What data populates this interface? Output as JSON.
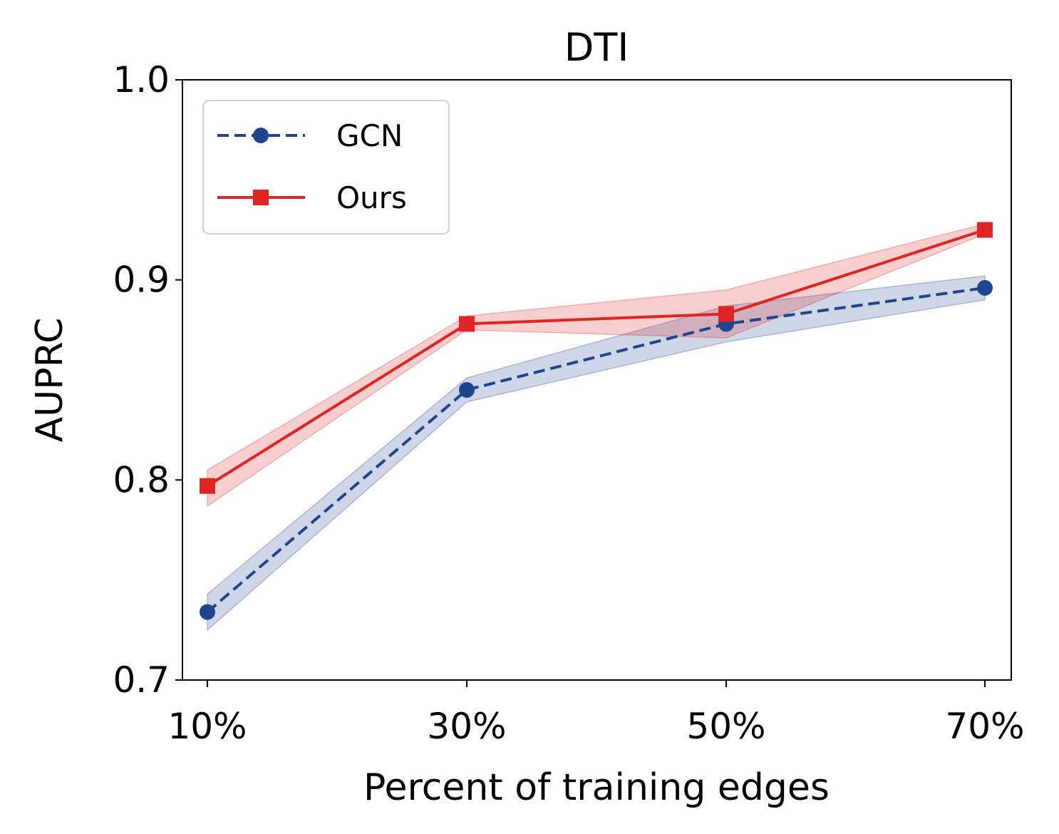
{
  "chart_data": {
    "type": "line",
    "title": "DTI",
    "xlabel": "Percent of training edges",
    "ylabel": "AUPRC",
    "categories": [
      "10%",
      "30%",
      "50%",
      "70%"
    ],
    "ylim": [
      0.7,
      1.0
    ],
    "yticks": [
      "0.7",
      "0.8",
      "0.9",
      "1.0"
    ],
    "grid": false,
    "legend_position": "top-left",
    "series": [
      {
        "name": "GCN",
        "values": [
          0.734,
          0.845,
          0.878,
          0.896
        ],
        "lower": [
          0.725,
          0.839,
          0.869,
          0.89
        ],
        "upper": [
          0.743,
          0.851,
          0.887,
          0.902
        ],
        "color": "#1f4591",
        "line_style": "dashed",
        "marker": "circle"
      },
      {
        "name": "Ours",
        "values": [
          0.797,
          0.878,
          0.883,
          0.925
        ],
        "lower": [
          0.787,
          0.875,
          0.871,
          0.923
        ],
        "upper": [
          0.805,
          0.882,
          0.895,
          0.928
        ],
        "color": "#e02424",
        "line_style": "solid",
        "marker": "square"
      }
    ]
  }
}
